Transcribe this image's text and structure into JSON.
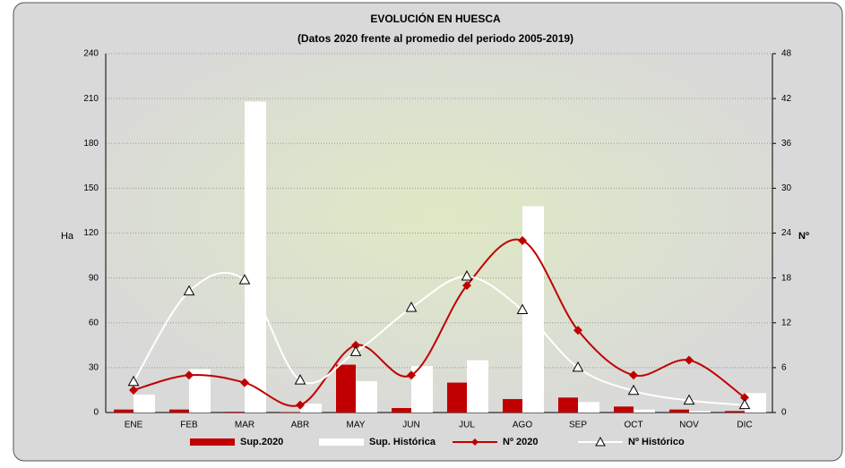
{
  "chart_data": {
    "type": "bar_line",
    "title": "EVOLUCIÓN EN HUESCA",
    "subtitle": "(Datos 2020 frente al promedio del periodo 2005-2019)",
    "y_label": "Ha",
    "y2_label": "Nº",
    "categories": [
      "ENE",
      "FEB",
      "MAR",
      "ABR",
      "MAY",
      "JUN",
      "JUL",
      "AGO",
      "SEP",
      "OCT",
      "NOV",
      "DIC"
    ],
    "series": [
      {
        "name": "Sup.2020",
        "kind": "bar",
        "color": "#c00000",
        "values": [
          2,
          2,
          0.5,
          0.3,
          32,
          3,
          20,
          9,
          10,
          4,
          2,
          1
        ]
      },
      {
        "name": "Sup. Histórica",
        "kind": "bar",
        "color": "#ffffff",
        "values": [
          12,
          29,
          208,
          6,
          21,
          31,
          35,
          138,
          7,
          2,
          1,
          13
        ]
      },
      {
        "name": "Nº 2020",
        "kind": "line",
        "axis": "y2",
        "color": "#c00000",
        "values": [
          3,
          5,
          4,
          1,
          9,
          5,
          17,
          23,
          11,
          5,
          7,
          2
        ]
      },
      {
        "name": "Nº Histórico",
        "kind": "line",
        "axis": "y2",
        "color": "#ffffff",
        "values": [
          4.1,
          16.2,
          17.7,
          4.3,
          8.1,
          14,
          18.2,
          13.7,
          6,
          2.9,
          1.6,
          1
        ]
      }
    ],
    "ylim": [
      0,
      240
    ],
    "yticks": [
      0,
      30,
      60,
      90,
      120,
      150,
      180,
      210,
      240
    ],
    "y2lim": [
      0,
      48
    ],
    "y2ticks": [
      0,
      6,
      12,
      18,
      24,
      30,
      36,
      42,
      48
    ],
    "grid": true
  }
}
